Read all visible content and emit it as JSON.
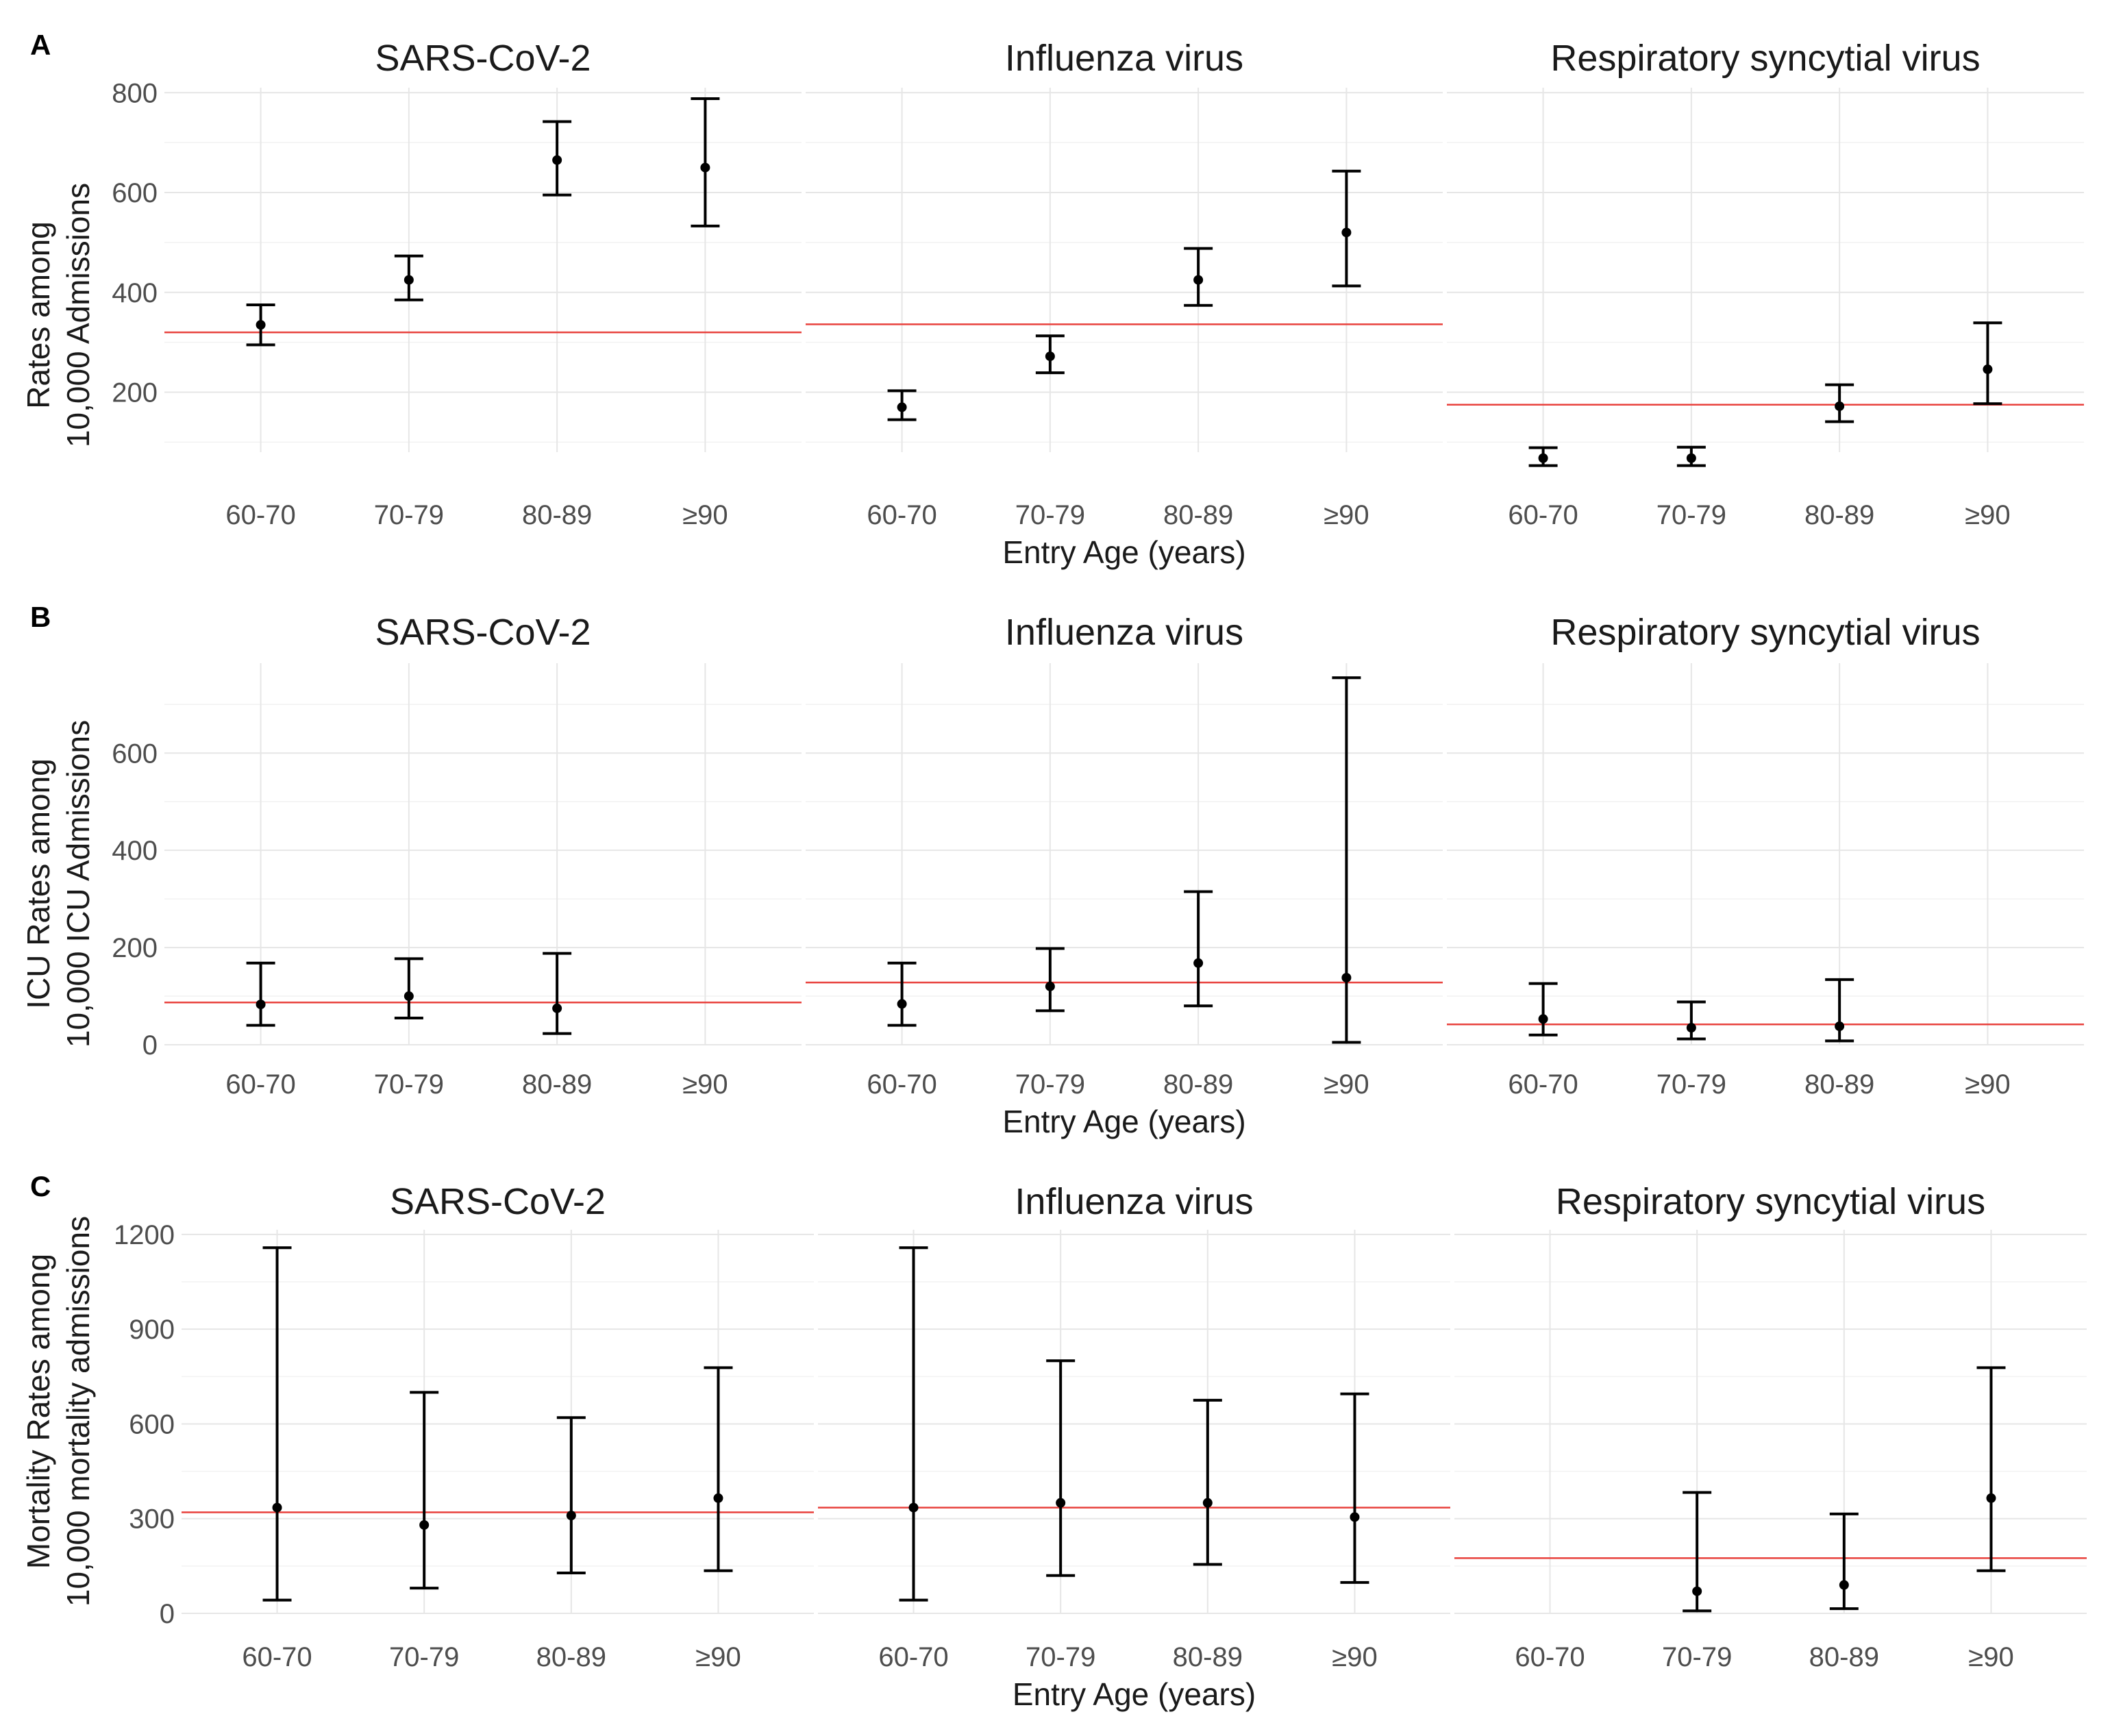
{
  "figure": {
    "x_axis_label": "Entry Age (years)",
    "colors": {
      "reference_line": "#e8413c",
      "points": "#000000",
      "grid_major": "#e6e6e6",
      "grid_minor": "#f2f2f2"
    }
  },
  "chart_data": [
    {
      "panel": "A",
      "type": "errorbar",
      "ylabel": [
        "Rates among",
        "10,000 Admissions"
      ],
      "ylim": [
        80,
        810
      ],
      "yticks": [
        200,
        400,
        600,
        800
      ],
      "categories": [
        "60-70",
        "70-79",
        "80-89",
        "≥90"
      ],
      "facets": [
        {
          "title": "SARS-CoV-2",
          "reference": 320,
          "points": [
            {
              "value": 335,
              "low": 295,
              "high": 375
            },
            {
              "value": 425,
              "low": 385,
              "high": 473
            },
            {
              "value": 665,
              "low": 595,
              "high": 742
            },
            {
              "value": 650,
              "low": 533,
              "high": 788
            }
          ]
        },
        {
          "title": "Influenza virus",
          "reference": 336,
          "points": [
            {
              "value": 170,
              "low": 145,
              "high": 203
            },
            {
              "value": 272,
              "low": 239,
              "high": 313
            },
            {
              "value": 425,
              "low": 374,
              "high": 488
            },
            {
              "value": 520,
              "low": 413,
              "high": 643
            }
          ]
        },
        {
          "title": "Respiratory syncytial virus",
          "reference": 175,
          "points": [
            {
              "value": 68,
              "low": 53,
              "high": 89
            },
            {
              "value": 68,
              "low": 53,
              "high": 90
            },
            {
              "value": 172,
              "low": 141,
              "high": 215
            },
            {
              "value": 246,
              "low": 177,
              "high": 339
            }
          ]
        }
      ]
    },
    {
      "panel": "B",
      "type": "errorbar",
      "ylabel": [
        "ICU Rates among",
        "10,000 ICU Admissions"
      ],
      "ylim": [
        0,
        785
      ],
      "yticks": [
        0,
        200,
        400,
        600
      ],
      "categories": [
        "60-70",
        "70-79",
        "80-89",
        "≥90"
      ],
      "facets": [
        {
          "title": "SARS-CoV-2",
          "reference": 87,
          "points": [
            {
              "value": 83,
              "low": 40,
              "high": 168
            },
            {
              "value": 100,
              "low": 55,
              "high": 177
            },
            {
              "value": 75,
              "low": 23,
              "high": 188
            },
            null
          ]
        },
        {
          "title": "Influenza virus",
          "reference": 128,
          "points": [
            {
              "value": 84,
              "low": 40,
              "high": 168
            },
            {
              "value": 120,
              "low": 70,
              "high": 198
            },
            {
              "value": 168,
              "low": 80,
              "high": 315
            },
            {
              "value": 138,
              "low": 5,
              "high": 755
            }
          ]
        },
        {
          "title": "Respiratory syncytial virus",
          "reference": 42,
          "points": [
            {
              "value": 53,
              "low": 20,
              "high": 126
            },
            {
              "value": 35,
              "low": 12,
              "high": 88
            },
            {
              "value": 38,
              "low": 8,
              "high": 134
            },
            null
          ]
        }
      ]
    },
    {
      "panel": "C",
      "type": "errorbar",
      "ylabel": [
        "Mortality Rates among",
        "10,000 mortality admissions"
      ],
      "ylim": [
        0,
        1215
      ],
      "yticks": [
        0,
        300,
        600,
        900,
        1200
      ],
      "categories": [
        "60-70",
        "70-79",
        "80-89",
        "≥90"
      ],
      "facets": [
        {
          "title": "SARS-CoV-2",
          "reference": 320,
          "points": [
            {
              "value": 335,
              "low": 42,
              "high": 1158
            },
            {
              "value": 280,
              "low": 80,
              "high": 700
            },
            {
              "value": 310,
              "low": 128,
              "high": 620
            },
            {
              "value": 365,
              "low": 135,
              "high": 778
            }
          ]
        },
        {
          "title": "Influenza virus",
          "reference": 335,
          "points": [
            {
              "value": 335,
              "low": 42,
              "high": 1158
            },
            {
              "value": 350,
              "low": 120,
              "high": 800
            },
            {
              "value": 350,
              "low": 155,
              "high": 675
            },
            {
              "value": 305,
              "low": 98,
              "high": 695
            }
          ]
        },
        {
          "title": "Respiratory syncytial virus",
          "reference": 175,
          "points": [
            null,
            {
              "value": 70,
              "low": 8,
              "high": 383
            },
            {
              "value": 90,
              "low": 15,
              "high": 315
            },
            {
              "value": 365,
              "low": 135,
              "high": 778
            }
          ]
        }
      ]
    }
  ]
}
